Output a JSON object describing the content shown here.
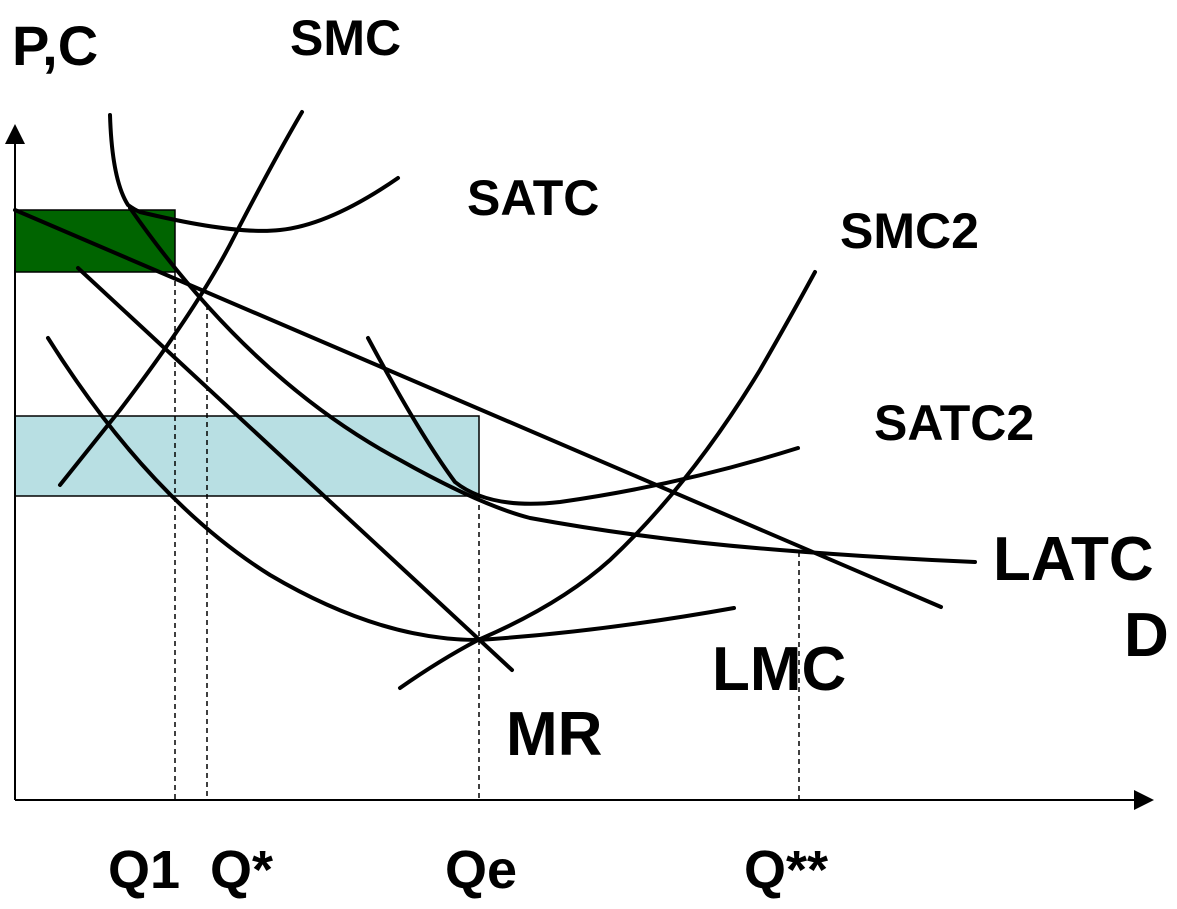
{
  "axes": {
    "y_label": "P,C"
  },
  "curve_labels": {
    "smc": "SMC",
    "satc": "SATC",
    "smc2": "SMC2",
    "satc2": "SATC2",
    "latc": "LATC",
    "demand": "D",
    "lmc": "LMC",
    "mr": "MR"
  },
  "quantity_labels": {
    "q1": "Q1",
    "q_star": "Q*",
    "qe": "Qe",
    "q_double_star": "Q**"
  },
  "colors": {
    "profit_small_plant": "#006400",
    "profit_large_plant": "#b8dfe3",
    "curves": "#000000"
  }
}
